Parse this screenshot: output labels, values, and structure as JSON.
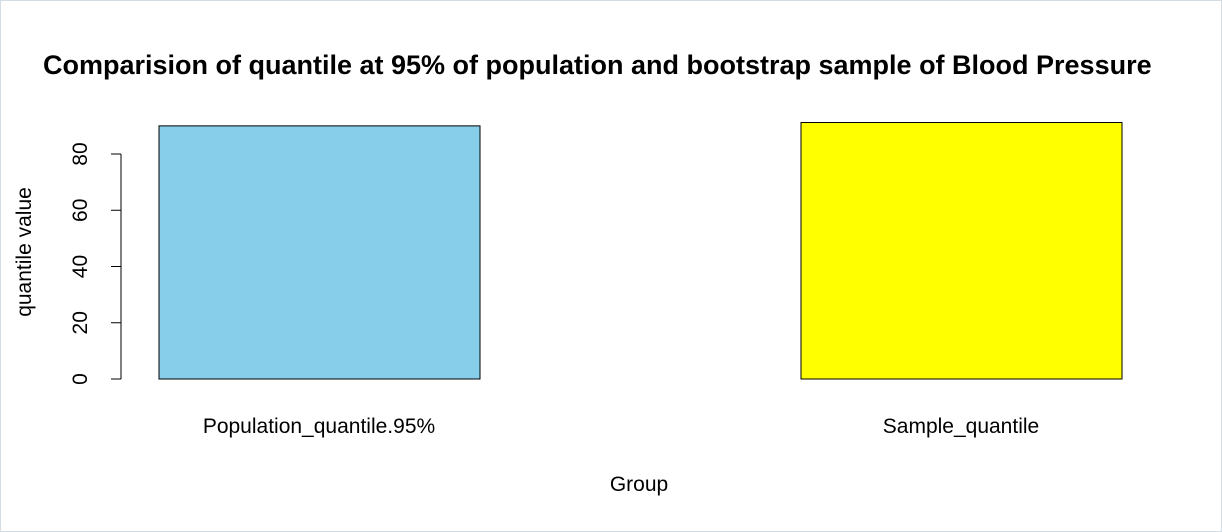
{
  "chart_data": {
    "type": "bar",
    "title": "Comparision of quantile at 95% of population and bootstrap sample of Blood Pressure",
    "xlabel": "Group",
    "ylabel": "quantile value",
    "categories": [
      "Population_quantile.95%",
      "Sample_quantile"
    ],
    "values": [
      90,
      91.2
    ],
    "colors": [
      "#87ceeb",
      "#ffff00"
    ],
    "ylim": [
      0,
      90
    ],
    "yticks": [
      0,
      20,
      40,
      60,
      80
    ],
    "grid": false
  }
}
